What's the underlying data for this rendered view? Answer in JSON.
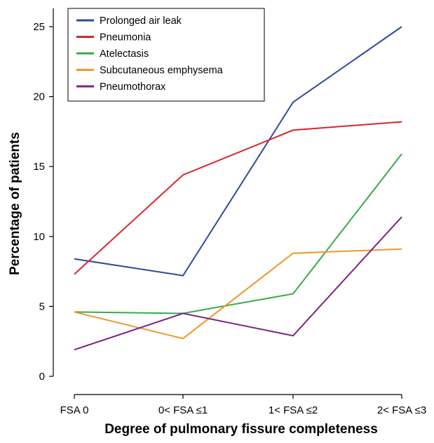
{
  "chart_data": {
    "type": "line",
    "title": "",
    "xlabel": "Degree of pulmonary fissure completeness",
    "ylabel": "Percentage of patients",
    "categories": [
      "FSA 0",
      "0< FSA ≤1",
      "1< FSA ≤2",
      "2< FSA ≤3"
    ],
    "ylim": [
      0,
      25
    ],
    "yticks": [
      0,
      5,
      10,
      15,
      20,
      25
    ],
    "grid": false,
    "legend_position": "top-left",
    "series": [
      {
        "name": "Prolonged air leak",
        "color": "#2e4a9b",
        "values": [
          8.4,
          7.2,
          19.6,
          25.0
        ]
      },
      {
        "name": "Pneumonia",
        "color": "#d7262e",
        "values": [
          7.3,
          14.4,
          17.6,
          18.2
        ]
      },
      {
        "name": "Atelectasis",
        "color": "#3aaa48",
        "values": [
          4.6,
          4.5,
          5.9,
          15.9
        ]
      },
      {
        "name": "Subcutaneous emphysema",
        "color": "#f0962a",
        "values": [
          4.6,
          2.7,
          8.8,
          9.1
        ]
      },
      {
        "name": "Pneumothorax",
        "color": "#7b2581",
        "values": [
          1.9,
          4.5,
          2.9,
          11.4
        ]
      }
    ]
  }
}
